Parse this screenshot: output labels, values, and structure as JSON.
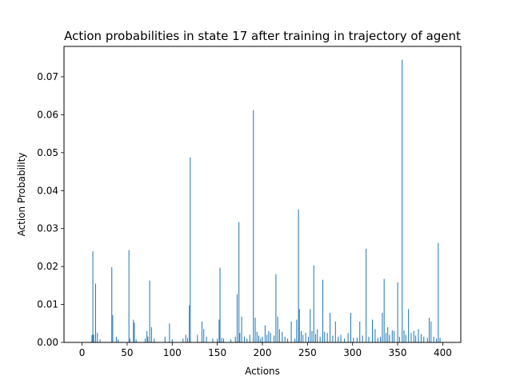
{
  "chart_data": {
    "type": "bar",
    "title": "Action probabilities in state 17 after training in trajectory of agent",
    "xlabel": "Actions",
    "ylabel": "Action Probability",
    "xlim": [
      -20,
      420
    ],
    "ylim": [
      0,
      0.078
    ],
    "x_ticks": [
      0,
      50,
      100,
      150,
      200,
      250,
      300,
      350,
      400
    ],
    "y_ticks": [
      0.0,
      0.01,
      0.02,
      0.03,
      0.04,
      0.05,
      0.06,
      0.07
    ],
    "y_tick_labels": [
      "0.00",
      "0.01",
      "0.02",
      "0.03",
      "0.04",
      "0.05",
      "0.06",
      "0.07"
    ],
    "grid": false,
    "bar_color": "#1f77b4",
    "bars": [
      {
        "x": 12,
        "y": 0.024
      },
      {
        "x": 11,
        "y": 0.002
      },
      {
        "x": 13,
        "y": 0.002
      },
      {
        "x": 15,
        "y": 0.0155
      },
      {
        "x": 17,
        "y": 0.0025
      },
      {
        "x": 20,
        "y": 0.0008
      },
      {
        "x": 33,
        "y": 0.0198
      },
      {
        "x": 34,
        "y": 0.0072
      },
      {
        "x": 38,
        "y": 0.0015
      },
      {
        "x": 40,
        "y": 0.0008
      },
      {
        "x": 52,
        "y": 0.0243
      },
      {
        "x": 53,
        "y": 0.001
      },
      {
        "x": 57,
        "y": 0.006
      },
      {
        "x": 58,
        "y": 0.0052
      },
      {
        "x": 60,
        "y": 0.0008
      },
      {
        "x": 70,
        "y": 0.001
      },
      {
        "x": 72,
        "y": 0.003
      },
      {
        "x": 73,
        "y": 0.0015
      },
      {
        "x": 75,
        "y": 0.0163
      },
      {
        "x": 77,
        "y": 0.004
      },
      {
        "x": 80,
        "y": 0.001
      },
      {
        "x": 92,
        "y": 0.0015
      },
      {
        "x": 97,
        "y": 0.005
      },
      {
        "x": 100,
        "y": 0.0008
      },
      {
        "x": 112,
        "y": 0.001
      },
      {
        "x": 115,
        "y": 0.002
      },
      {
        "x": 117,
        "y": 0.0012
      },
      {
        "x": 119,
        "y": 0.0098
      },
      {
        "x": 120,
        "y": 0.0487
      },
      {
        "x": 128,
        "y": 0.002
      },
      {
        "x": 133,
        "y": 0.0055
      },
      {
        "x": 135,
        "y": 0.0035
      },
      {
        "x": 138,
        "y": 0.0015
      },
      {
        "x": 145,
        "y": 0.001
      },
      {
        "x": 150,
        "y": 0.001
      },
      {
        "x": 152,
        "y": 0.006
      },
      {
        "x": 153,
        "y": 0.0197
      },
      {
        "x": 155,
        "y": 0.0012
      },
      {
        "x": 157,
        "y": 0.001
      },
      {
        "x": 165,
        "y": 0.0008
      },
      {
        "x": 170,
        "y": 0.0015
      },
      {
        "x": 172,
        "y": 0.0127
      },
      {
        "x": 174,
        "y": 0.0317
      },
      {
        "x": 175,
        "y": 0.0025
      },
      {
        "x": 177,
        "y": 0.0068
      },
      {
        "x": 180,
        "y": 0.0015
      },
      {
        "x": 183,
        "y": 0.001
      },
      {
        "x": 186,
        "y": 0.002
      },
      {
        "x": 190,
        "y": 0.0612
      },
      {
        "x": 192,
        "y": 0.0065
      },
      {
        "x": 194,
        "y": 0.0028
      },
      {
        "x": 196,
        "y": 0.0018
      },
      {
        "x": 198,
        "y": 0.001
      },
      {
        "x": 200,
        "y": 0.0015
      },
      {
        "x": 203,
        "y": 0.0045
      },
      {
        "x": 205,
        "y": 0.002
      },
      {
        "x": 207,
        "y": 0.003
      },
      {
        "x": 209,
        "y": 0.0025
      },
      {
        "x": 213,
        "y": 0.0018
      },
      {
        "x": 215,
        "y": 0.018
      },
      {
        "x": 217,
        "y": 0.0068
      },
      {
        "x": 219,
        "y": 0.0035
      },
      {
        "x": 222,
        "y": 0.0028
      },
      {
        "x": 225,
        "y": 0.0015
      },
      {
        "x": 228,
        "y": 0.001
      },
      {
        "x": 232,
        "y": 0.0055
      },
      {
        "x": 236,
        "y": 0.001
      },
      {
        "x": 238,
        "y": 0.006
      },
      {
        "x": 240,
        "y": 0.035
      },
      {
        "x": 241,
        "y": 0.0088
      },
      {
        "x": 243,
        "y": 0.003
      },
      {
        "x": 245,
        "y": 0.002
      },
      {
        "x": 248,
        "y": 0.0025
      },
      {
        "x": 251,
        "y": 0.0015
      },
      {
        "x": 253,
        "y": 0.0088
      },
      {
        "x": 255,
        "y": 0.003
      },
      {
        "x": 257,
        "y": 0.0203
      },
      {
        "x": 259,
        "y": 0.0022
      },
      {
        "x": 261,
        "y": 0.0035
      },
      {
        "x": 264,
        "y": 0.0015
      },
      {
        "x": 267,
        "y": 0.0165
      },
      {
        "x": 269,
        "y": 0.0028
      },
      {
        "x": 272,
        "y": 0.0025
      },
      {
        "x": 275,
        "y": 0.0078
      },
      {
        "x": 278,
        "y": 0.0018
      },
      {
        "x": 281,
        "y": 0.0055
      },
      {
        "x": 284,
        "y": 0.0015
      },
      {
        "x": 287,
        "y": 0.002
      },
      {
        "x": 291,
        "y": 0.001
      },
      {
        "x": 295,
        "y": 0.0025
      },
      {
        "x": 298,
        "y": 0.0078
      },
      {
        "x": 301,
        "y": 0.0012
      },
      {
        "x": 305,
        "y": 0.0012
      },
      {
        "x": 308,
        "y": 0.0055
      },
      {
        "x": 311,
        "y": 0.0018
      },
      {
        "x": 315,
        "y": 0.0247
      },
      {
        "x": 318,
        "y": 0.0015
      },
      {
        "x": 322,
        "y": 0.006
      },
      {
        "x": 325,
        "y": 0.0035
      },
      {
        "x": 328,
        "y": 0.0012
      },
      {
        "x": 331,
        "y": 0.0015
      },
      {
        "x": 333,
        "y": 0.0078
      },
      {
        "x": 335,
        "y": 0.0167
      },
      {
        "x": 337,
        "y": 0.0025
      },
      {
        "x": 339,
        "y": 0.004
      },
      {
        "x": 341,
        "y": 0.002
      },
      {
        "x": 344,
        "y": 0.0032
      },
      {
        "x": 346,
        "y": 0.003
      },
      {
        "x": 350,
        "y": 0.0158
      },
      {
        "x": 352,
        "y": 0.0015
      },
      {
        "x": 355,
        "y": 0.0745
      },
      {
        "x": 357,
        "y": 0.0032
      },
      {
        "x": 359,
        "y": 0.002
      },
      {
        "x": 362,
        "y": 0.0088
      },
      {
        "x": 365,
        "y": 0.0025
      },
      {
        "x": 368,
        "y": 0.003
      },
      {
        "x": 370,
        "y": 0.0018
      },
      {
        "x": 373,
        "y": 0.0035
      },
      {
        "x": 376,
        "y": 0.0022
      },
      {
        "x": 379,
        "y": 0.0015
      },
      {
        "x": 383,
        "y": 0.0012
      },
      {
        "x": 385,
        "y": 0.0065
      },
      {
        "x": 387,
        "y": 0.0055
      },
      {
        "x": 390,
        "y": 0.0015
      },
      {
        "x": 393,
        "y": 0.001
      },
      {
        "x": 395,
        "y": 0.0262
      },
      {
        "x": 397,
        "y": 0.0012
      }
    ]
  }
}
